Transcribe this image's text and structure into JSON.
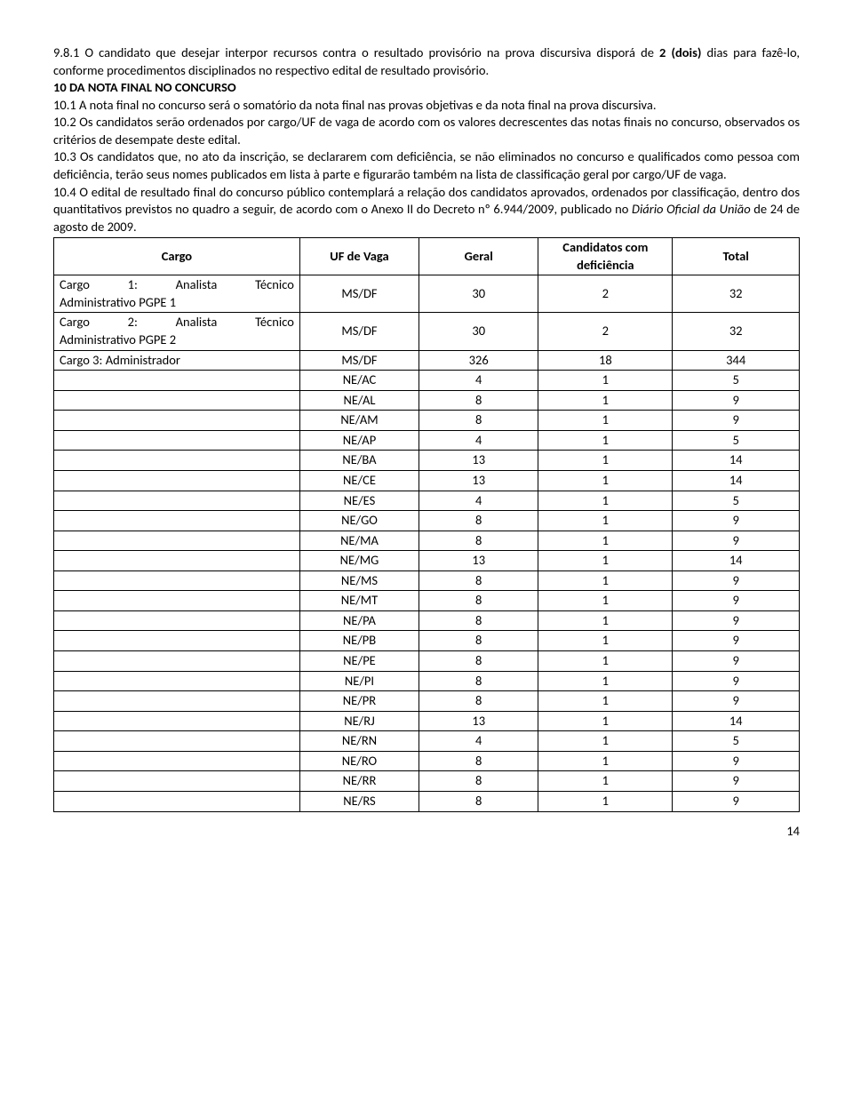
{
  "paragraphs": {
    "p981": "9.8.1 O candidato que desejar interpor recursos contra o resultado provisório na prova discursiva disporá de ",
    "p981_bold": "2 (dois)",
    "p981_cont": " dias para fazê-lo, conforme procedimentos disciplinados no respectivo edital de resultado provisório.",
    "h10": "10 DA NOTA FINAL NO CONCURSO",
    "p101": "10.1 A nota final no concurso será o somatório da nota final nas provas objetivas e da nota final na prova discursiva.",
    "p102": "10.2 Os candidatos serão ordenados por cargo/UF de vaga de acordo com os valores decrescentes das notas finais no concurso, observados os critérios de desempate deste edital.",
    "p103": "10.3 Os candidatos que, no ato da inscrição, se declararem com deficiência, se não eliminados no concurso e qualificados como pessoa com deficiência, terão seus nomes publicados em lista à parte e figurarão também na lista de classificação geral por cargo/UF de vaga.",
    "p104_a": "10.4 O edital de resultado final do concurso público contemplará a relação dos candidatos aprovados, ordenados por classificação, dentro dos quantitativos previstos no quadro a seguir, de acordo com o Anexo II do Decreto nº 6.944/2009, publicado no ",
    "p104_italic": "Diário Oficial da União",
    "p104_b": " de 24 de agosto de 2009."
  },
  "table": {
    "headers": {
      "cargo": "Cargo",
      "uf": "UF de Vaga",
      "geral": "Geral",
      "def": "Candidatos com deficiência",
      "total": "Total"
    },
    "rows": [
      {
        "cargo_line1": "Cargo 1: Analista Técnico",
        "cargo_line2": "Administrativo PGPE 1",
        "cargo_style": "justify",
        "uf": "MS/DF",
        "geral": "30",
        "def": "2",
        "total": "32"
      },
      {
        "cargo_line1": "Cargo 2: Analista Técnico",
        "cargo_line2": "Administrativo PGPE 2",
        "cargo_style": "justify",
        "uf": "MS/DF",
        "geral": "30",
        "def": "2",
        "total": "32"
      },
      {
        "cargo_line1": "Cargo 3: Administrador",
        "cargo_line2": "",
        "cargo_style": "left",
        "uf": "MS/DF",
        "geral": "326",
        "def": "18",
        "total": "344"
      },
      {
        "cargo_line1": "",
        "cargo_line2": "",
        "uf": "NE/AC",
        "geral": "4",
        "def": "1",
        "total": "5"
      },
      {
        "cargo_line1": "",
        "cargo_line2": "",
        "uf": "NE/AL",
        "geral": "8",
        "def": "1",
        "total": "9"
      },
      {
        "cargo_line1": "",
        "cargo_line2": "",
        "uf": "NE/AM",
        "geral": "8",
        "def": "1",
        "total": "9"
      },
      {
        "cargo_line1": "",
        "cargo_line2": "",
        "uf": "NE/AP",
        "geral": "4",
        "def": "1",
        "total": "5"
      },
      {
        "cargo_line1": "",
        "cargo_line2": "",
        "uf": "NE/BA",
        "geral": "13",
        "def": "1",
        "total": "14"
      },
      {
        "cargo_line1": "",
        "cargo_line2": "",
        "uf": "NE/CE",
        "geral": "13",
        "def": "1",
        "total": "14"
      },
      {
        "cargo_line1": "",
        "cargo_line2": "",
        "uf": "NE/ES",
        "geral": "4",
        "def": "1",
        "total": "5"
      },
      {
        "cargo_line1": "",
        "cargo_line2": "",
        "uf": "NE/GO",
        "geral": "8",
        "def": "1",
        "total": "9"
      },
      {
        "cargo_line1": "",
        "cargo_line2": "",
        "uf": "NE/MA",
        "geral": "8",
        "def": "1",
        "total": "9"
      },
      {
        "cargo_line1": "",
        "cargo_line2": "",
        "uf": "NE/MG",
        "geral": "13",
        "def": "1",
        "total": "14"
      },
      {
        "cargo_line1": "",
        "cargo_line2": "",
        "uf": "NE/MS",
        "geral": "8",
        "def": "1",
        "total": "9"
      },
      {
        "cargo_line1": "",
        "cargo_line2": "",
        "uf": "NE/MT",
        "geral": "8",
        "def": "1",
        "total": "9"
      },
      {
        "cargo_line1": "",
        "cargo_line2": "",
        "uf": "NE/PA",
        "geral": "8",
        "def": "1",
        "total": "9"
      },
      {
        "cargo_line1": "",
        "cargo_line2": "",
        "uf": "NE/PB",
        "geral": "8",
        "def": "1",
        "total": "9"
      },
      {
        "cargo_line1": "",
        "cargo_line2": "",
        "uf": "NE/PE",
        "geral": "8",
        "def": "1",
        "total": "9"
      },
      {
        "cargo_line1": "",
        "cargo_line2": "",
        "uf": "NE/PI",
        "geral": "8",
        "def": "1",
        "total": "9"
      },
      {
        "cargo_line1": "",
        "cargo_line2": "",
        "uf": "NE/PR",
        "geral": "8",
        "def": "1",
        "total": "9"
      },
      {
        "cargo_line1": "",
        "cargo_line2": "",
        "uf": "NE/RJ",
        "geral": "13",
        "def": "1",
        "total": "14"
      },
      {
        "cargo_line1": "",
        "cargo_line2": "",
        "uf": "NE/RN",
        "geral": "4",
        "def": "1",
        "total": "5"
      },
      {
        "cargo_line1": "",
        "cargo_line2": "",
        "uf": "NE/RO",
        "geral": "8",
        "def": "1",
        "total": "9"
      },
      {
        "cargo_line1": "",
        "cargo_line2": "",
        "uf": "NE/RR",
        "geral": "8",
        "def": "1",
        "total": "9"
      },
      {
        "cargo_line1": "",
        "cargo_line2": "",
        "uf": "NE/RS",
        "geral": "8",
        "def": "1",
        "total": "9"
      }
    ]
  },
  "column_widths": {
    "cargo": "33%",
    "uf": "16%",
    "geral": "16%",
    "def": "18%",
    "total": "17%"
  },
  "page_number": "14"
}
